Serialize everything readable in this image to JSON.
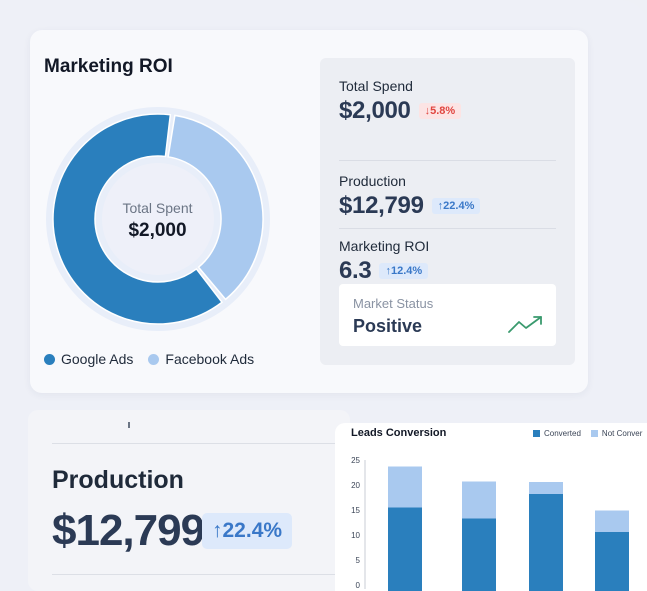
{
  "roi_card": {
    "title": "Marketing ROI",
    "donut_center_label": "Total Spent",
    "donut_center_value": "$2,000",
    "donut_segments": [
      {
        "name": "Google Ads",
        "share": 0.63,
        "color": "#2a7fbd"
      },
      {
        "name": "Facebook Ads",
        "share": 0.37,
        "color": "#a9c9ef"
      }
    ],
    "legend": [
      {
        "label": "Google Ads",
        "color": "#2a7fbd"
      },
      {
        "label": "Facebook Ads",
        "color": "#a9c9ef"
      }
    ]
  },
  "stats": {
    "total_spend": {
      "label": "Total Spend",
      "value": "$2,000",
      "change": "↓5.8%",
      "direction": "down"
    },
    "production": {
      "label": "Production",
      "value": "$12,799",
      "change": "↑22.4%",
      "direction": "up"
    },
    "marketing_roi": {
      "label": "Marketing ROI",
      "value": "6.3",
      "change": "↑12.4%",
      "direction": "up"
    },
    "market_status": {
      "label": "Market Status",
      "value": "Positive",
      "icon": "trend-up-icon"
    }
  },
  "production_card": {
    "label": "Production",
    "value": "$12,799",
    "change": "↑22.4%"
  },
  "chart_data": {
    "type": "bar",
    "title": "Leads Conversion",
    "series": [
      {
        "name": "Converted",
        "values": [
          15.5,
          13.3,
          18.2,
          10.6
        ],
        "color": "#2a7fbd"
      },
      {
        "name": "Not Conver",
        "values": [
          8.2,
          7.4,
          2.4,
          4.3
        ],
        "color": "#a9c9ef"
      }
    ],
    "y_ticks": [
      "25",
      "20",
      "15",
      "10",
      "5",
      "0"
    ],
    "ylim": [
      0,
      25
    ],
    "stacked": true
  }
}
